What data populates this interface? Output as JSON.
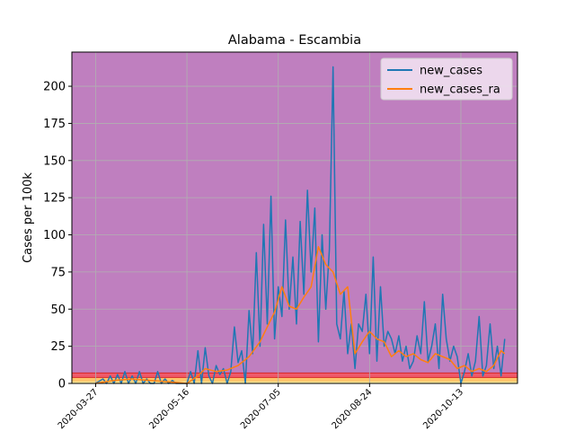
{
  "chart_data": {
    "type": "line",
    "title": "Alabama - Escambia",
    "xlabel": "",
    "ylabel": "Cases per 100k",
    "x_tick_labels": [
      "2020-03-27",
      "2020-05-16",
      "2020-07-05",
      "2020-08-24",
      "2020-10-13"
    ],
    "y_ticks": [
      0,
      25,
      50,
      75,
      100,
      125,
      150,
      175,
      200
    ],
    "xlim": [
      "2020-03-14",
      "2020-11-13"
    ],
    "ylim": [
      0,
      223
    ],
    "grid": true,
    "legend_position": "top-right",
    "background_bands": [
      {
        "from": 0,
        "to": 1,
        "color": "#fff59d"
      },
      {
        "from": 1,
        "to": 4,
        "color": "#ffc56b"
      },
      {
        "from": 4,
        "to": 7,
        "color": "#ef5a6a"
      },
      {
        "from": 7,
        "to": 223,
        "color": "#bf7fbf"
      }
    ],
    "series": [
      {
        "name": "new_cases",
        "color": "#1f77b4",
        "x": [
          "2020-03-27",
          "2020-03-31",
          "2020-04-02",
          "2020-04-04",
          "2020-04-06",
          "2020-04-08",
          "2020-04-10",
          "2020-04-12",
          "2020-04-14",
          "2020-04-16",
          "2020-04-18",
          "2020-04-20",
          "2020-04-22",
          "2020-04-24",
          "2020-04-26",
          "2020-04-28",
          "2020-04-30",
          "2020-05-02",
          "2020-05-04",
          "2020-05-06",
          "2020-05-08",
          "2020-05-10",
          "2020-05-12",
          "2020-05-14",
          "2020-05-16",
          "2020-05-18",
          "2020-05-20",
          "2020-05-22",
          "2020-05-24",
          "2020-05-26",
          "2020-05-28",
          "2020-05-30",
          "2020-06-01",
          "2020-06-03",
          "2020-06-05",
          "2020-06-07",
          "2020-06-09",
          "2020-06-11",
          "2020-06-13",
          "2020-06-15",
          "2020-06-17",
          "2020-06-19",
          "2020-06-21",
          "2020-06-23",
          "2020-06-25",
          "2020-06-27",
          "2020-06-29",
          "2020-07-01",
          "2020-07-03",
          "2020-07-05",
          "2020-07-07",
          "2020-07-09",
          "2020-07-11",
          "2020-07-13",
          "2020-07-15",
          "2020-07-17",
          "2020-07-19",
          "2020-07-21",
          "2020-07-23",
          "2020-07-25",
          "2020-07-27",
          "2020-07-29",
          "2020-07-31",
          "2020-08-02",
          "2020-08-04",
          "2020-08-06",
          "2020-08-08",
          "2020-08-10",
          "2020-08-12",
          "2020-08-14",
          "2020-08-16",
          "2020-08-18",
          "2020-08-20",
          "2020-08-22",
          "2020-08-24",
          "2020-08-26",
          "2020-08-28",
          "2020-08-30",
          "2020-09-01",
          "2020-09-03",
          "2020-09-05",
          "2020-09-07",
          "2020-09-09",
          "2020-09-11",
          "2020-09-13",
          "2020-09-15",
          "2020-09-17",
          "2020-09-19",
          "2020-09-21",
          "2020-09-23",
          "2020-09-25",
          "2020-09-27",
          "2020-09-29",
          "2020-10-01",
          "2020-10-03",
          "2020-10-05",
          "2020-10-07",
          "2020-10-09",
          "2020-10-11",
          "2020-10-13",
          "2020-10-15",
          "2020-10-17",
          "2020-10-19",
          "2020-10-21",
          "2020-10-23",
          "2020-10-25",
          "2020-10-27",
          "2020-10-29",
          "2020-10-31",
          "2020-11-02",
          "2020-11-04",
          "2020-11-06"
        ],
        "y": [
          0,
          3,
          0,
          5,
          0,
          6,
          0,
          8,
          0,
          5,
          0,
          8,
          0,
          3,
          0,
          0,
          8,
          0,
          3,
          0,
          2,
          0,
          0,
          0,
          0,
          8,
          0,
          22,
          0,
          24,
          5,
          0,
          12,
          6,
          10,
          0,
          8,
          38,
          14,
          22,
          0,
          49,
          20,
          88,
          25,
          107,
          40,
          126,
          30,
          65,
          45,
          110,
          50,
          85,
          40,
          109,
          60,
          130,
          75,
          118,
          28,
          100,
          50,
          90,
          213,
          40,
          30,
          62,
          20,
          40,
          10,
          40,
          35,
          60,
          20,
          85,
          15,
          65,
          25,
          35,
          30,
          20,
          32,
          15,
          25,
          10,
          15,
          32,
          20,
          55,
          15,
          25,
          40,
          10,
          60,
          30,
          15,
          25,
          18,
          0,
          8,
          20,
          5,
          15,
          45,
          5,
          12,
          40,
          10,
          25,
          5,
          30
        ]
      },
      {
        "name": "new_cases_ra",
        "color": "#ff7f0e",
        "x": [
          "2020-03-27",
          "2020-04-06",
          "2020-04-16",
          "2020-04-26",
          "2020-05-06",
          "2020-05-16",
          "2020-05-22",
          "2020-05-26",
          "2020-06-01",
          "2020-06-07",
          "2020-06-13",
          "2020-06-19",
          "2020-06-25",
          "2020-06-29",
          "2020-07-03",
          "2020-07-07",
          "2020-07-11",
          "2020-07-15",
          "2020-07-19",
          "2020-07-23",
          "2020-07-27",
          "2020-07-31",
          "2020-08-04",
          "2020-08-08",
          "2020-08-12",
          "2020-08-16",
          "2020-08-20",
          "2020-08-24",
          "2020-08-28",
          "2020-09-01",
          "2020-09-05",
          "2020-09-09",
          "2020-09-13",
          "2020-09-17",
          "2020-09-21",
          "2020-09-25",
          "2020-09-29",
          "2020-10-03",
          "2020-10-07",
          "2020-10-11",
          "2020-10-15",
          "2020-10-19",
          "2020-10-23",
          "2020-10-27",
          "2020-10-31",
          "2020-11-04",
          "2020-11-06"
        ],
        "y": [
          0,
          2,
          3,
          2,
          1,
          0,
          5,
          10,
          8,
          9,
          12,
          18,
          28,
          38,
          48,
          65,
          52,
          50,
          58,
          65,
          92,
          80,
          75,
          60,
          65,
          20,
          28,
          35,
          30,
          28,
          18,
          22,
          18,
          20,
          16,
          14,
          20,
          18,
          16,
          10,
          12,
          8,
          10,
          8,
          12,
          22,
          20
        ]
      }
    ]
  }
}
